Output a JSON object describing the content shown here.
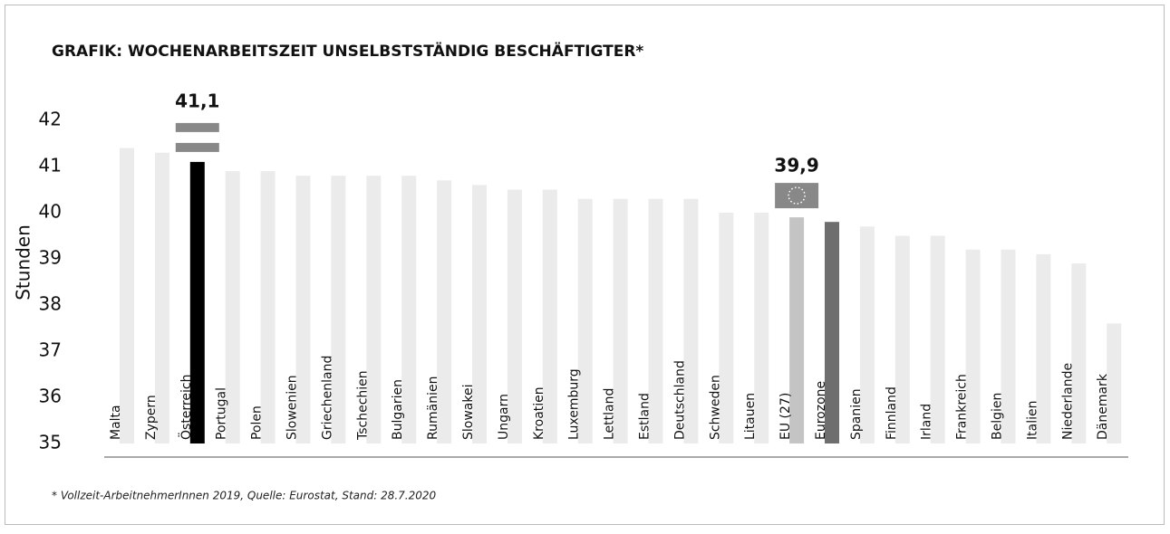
{
  "chart_data": {
    "type": "bar",
    "title": "GRAFIK: WOCHENARBEITSZEIT UNSELBSTSTÄNDIG BESCHÄFTIGTER*",
    "y_label": "Stunden",
    "footnote": "* Vollzeit-ArbeitnehmerInnen 2019, Quelle: Eurostat, Stand: 28.7.2020",
    "categories": [
      "Malta",
      "Zypern",
      "Österreich",
      "Portugal",
      "Polen",
      "Slowenien",
      "Griechenland",
      "Tschechien",
      "Bulgarien",
      "Rumänien",
      "Slowakei",
      "Ungarn",
      "Kroatien",
      "Luxemburg",
      "Lettland",
      "Estland",
      "Deutschland",
      "Schweden",
      "Litauen",
      "EU (27)",
      "Eurozone",
      "Spanien",
      "Finnland",
      "Irland",
      "Frankreich",
      "Belgien",
      "Italien",
      "Niederlande",
      "Dänemark"
    ],
    "values": [
      41.4,
      41.3,
      41.1,
      40.9,
      40.9,
      40.8,
      40.8,
      40.8,
      40.8,
      40.7,
      40.6,
      40.5,
      40.5,
      40.3,
      40.3,
      40.3,
      40.3,
      40.0,
      40.0,
      39.9,
      39.8,
      39.7,
      39.5,
      39.5,
      39.2,
      39.2,
      39.1,
      38.9,
      37.6
    ],
    "value_labels": [
      null,
      null,
      "41,1",
      null,
      null,
      null,
      null,
      null,
      null,
      null,
      null,
      null,
      null,
      null,
      null,
      null,
      null,
      null,
      null,
      "39,9",
      null,
      null,
      null,
      null,
      null,
      null,
      null,
      null,
      null
    ],
    "color": "#ebebeb",
    "colors": [
      null,
      null,
      "#000000",
      null,
      null,
      null,
      null,
      null,
      null,
      null,
      null,
      null,
      null,
      null,
      null,
      null,
      null,
      null,
      null,
      "#c4c4c4",
      "#6e6e6e",
      null,
      null,
      null,
      null,
      null,
      null,
      null,
      null
    ],
    "ylim": [
      35,
      42
    ],
    "yticks": [
      35,
      36,
      37,
      38,
      39,
      40,
      41,
      42
    ]
  }
}
